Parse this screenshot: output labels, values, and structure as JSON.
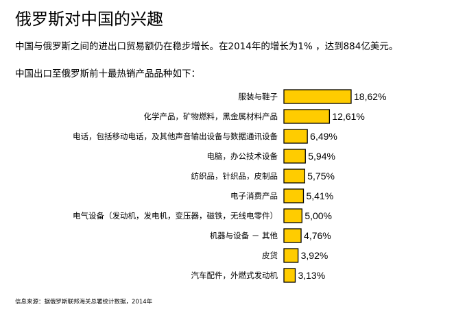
{
  "title": "俄罗斯对中国的兴趣",
  "intro": "中国与俄罗斯之间的进出口贸易额仍在稳步增长。在2014年的增长为1% ，达到884亿美元。",
  "subtitle": "中国出口至俄罗斯前十最热销产品品种如下：",
  "source": "信息来源：据俄罗斯联邦海关总署统计数据，2014年",
  "colors": {
    "bar": "#ffcc00",
    "bar_outline": "#000000"
  },
  "chart_data": {
    "type": "bar",
    "orientation": "horizontal",
    "categories": [
      "服装与鞋子",
      "化学产品，矿物燃料，黑金属材料产品",
      "电话，包括移动电话，及其他声音输出设备与数据通讯设备",
      "电脑，办公技术设备",
      "纺织品，针织品，皮制品",
      "电子消费产品",
      "电气设备（发动机，发电机，变压器，磁铁，无线电零件）",
      "机器与设备 － 其他",
      "皮货",
      "汽车配件，外燃式发动机"
    ],
    "values": [
      18.62,
      12.61,
      6.49,
      5.94,
      5.75,
      5.41,
      5.0,
      4.76,
      3.92,
      3.13
    ],
    "value_labels": [
      "18,62%",
      "12,61%",
      "6,49%",
      "5,94%",
      "5,75%",
      "5,41%",
      "5,00%",
      "4,76%",
      "3,92%",
      "3,13%"
    ],
    "unit": "%"
  }
}
